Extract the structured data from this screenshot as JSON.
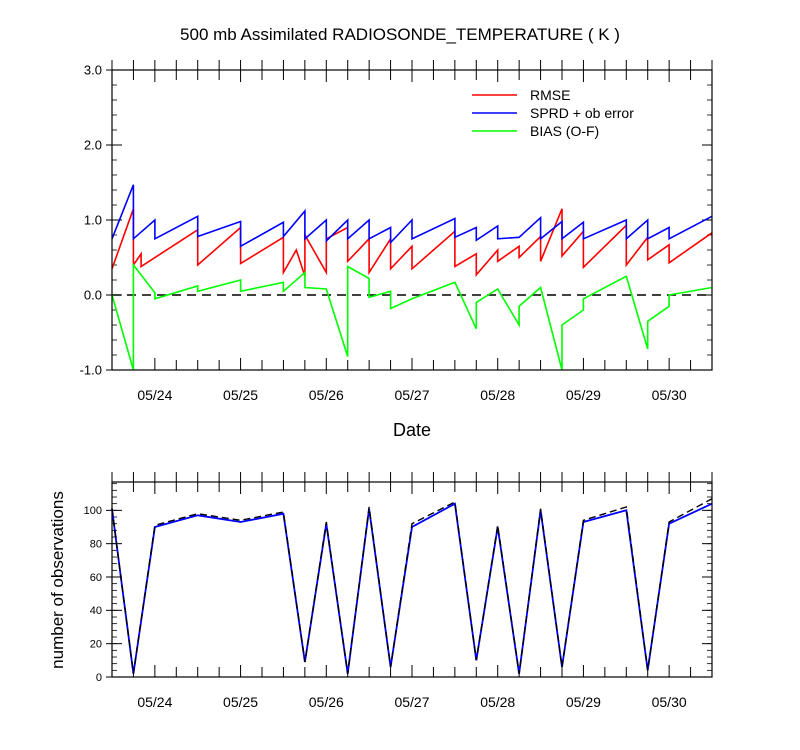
{
  "chart_data": [
    {
      "type": "line",
      "title": "500 mb Assimilated RADIOSONDE_TEMPERATURE ( K )",
      "xlabel": "Date",
      "ylabel": "",
      "xlim": [
        "05/23 12:00",
        "05/30 12:00"
      ],
      "ylim": [
        -1.0,
        3.0
      ],
      "yticks": [
        "3.0",
        "2.0",
        "1.0",
        "0.0",
        "-1.0"
      ],
      "ytick_values": [
        3,
        2,
        1,
        0,
        -1
      ],
      "xticks": [
        "05/24",
        "05/25",
        "05/26",
        "05/27",
        "05/28",
        "05/29",
        "05/30"
      ],
      "xtick_days": [
        24,
        25,
        26,
        27,
        28,
        29,
        30
      ],
      "legend_position": "top-right",
      "reference_line": {
        "y": 0,
        "style": "dashed",
        "color": "#000000"
      },
      "series": [
        {
          "name": "RMSE",
          "color": "#ff0000",
          "points": [
            [
              23.5,
              0.35
            ],
            [
              23.75,
              1.15
            ],
            [
              23.75,
              0.4
            ],
            [
              23.84,
              0.55
            ],
            [
              23.84,
              0.38
            ],
            [
              24.5,
              0.87
            ],
            [
              24.5,
              0.4
            ],
            [
              25.0,
              0.9
            ],
            [
              25.0,
              0.42
            ],
            [
              25.5,
              0.77
            ],
            [
              25.5,
              0.3
            ],
            [
              25.65,
              0.6
            ],
            [
              25.75,
              0.25
            ],
            [
              25.75,
              0.8
            ],
            [
              26.0,
              0.3
            ],
            [
              26.0,
              0.75
            ],
            [
              26.25,
              0.9
            ],
            [
              26.25,
              0.45
            ],
            [
              26.5,
              0.75
            ],
            [
              26.5,
              0.3
            ],
            [
              26.75,
              0.75
            ],
            [
              26.75,
              0.35
            ],
            [
              27.0,
              0.65
            ],
            [
              27.0,
              0.35
            ],
            [
              27.5,
              0.85
            ],
            [
              27.5,
              0.38
            ],
            [
              27.75,
              0.55
            ],
            [
              27.75,
              0.27
            ],
            [
              28.0,
              0.6
            ],
            [
              28.0,
              0.45
            ],
            [
              28.25,
              0.65
            ],
            [
              28.25,
              0.5
            ],
            [
              28.5,
              0.78
            ],
            [
              28.5,
              0.45
            ],
            [
              28.75,
              1.15
            ],
            [
              28.75,
              0.52
            ],
            [
              29.0,
              0.85
            ],
            [
              29.0,
              0.37
            ],
            [
              29.5,
              0.93
            ],
            [
              29.5,
              0.4
            ],
            [
              29.75,
              0.77
            ],
            [
              29.75,
              0.47
            ],
            [
              30.0,
              0.67
            ],
            [
              30.0,
              0.43
            ],
            [
              30.5,
              0.83
            ]
          ]
        },
        {
          "name": "SPRD + ob error",
          "color": "#0000ff",
          "points": [
            [
              23.5,
              0.75
            ],
            [
              23.75,
              1.47
            ],
            [
              23.75,
              0.75
            ],
            [
              24.0,
              1.0
            ],
            [
              24.0,
              0.75
            ],
            [
              24.5,
              1.05
            ],
            [
              24.5,
              0.78
            ],
            [
              25.0,
              0.98
            ],
            [
              25.0,
              0.65
            ],
            [
              25.5,
              0.97
            ],
            [
              25.5,
              0.78
            ],
            [
              25.75,
              1.12
            ],
            [
              25.75,
              0.75
            ],
            [
              26.0,
              1.0
            ],
            [
              26.0,
              0.72
            ],
            [
              26.25,
              1.0
            ],
            [
              26.25,
              0.75
            ],
            [
              26.5,
              1.0
            ],
            [
              26.5,
              0.75
            ],
            [
              26.75,
              0.9
            ],
            [
              26.75,
              0.7
            ],
            [
              27.0,
              1.0
            ],
            [
              27.0,
              0.75
            ],
            [
              27.5,
              1.02
            ],
            [
              27.5,
              0.77
            ],
            [
              27.75,
              0.9
            ],
            [
              27.75,
              0.73
            ],
            [
              28.0,
              0.92
            ],
            [
              28.0,
              0.75
            ],
            [
              28.25,
              0.77
            ],
            [
              28.5,
              1.03
            ],
            [
              28.5,
              0.75
            ],
            [
              28.75,
              0.98
            ],
            [
              28.75,
              0.75
            ],
            [
              29.0,
              0.97
            ],
            [
              29.0,
              0.75
            ],
            [
              29.5,
              1.0
            ],
            [
              29.5,
              0.75
            ],
            [
              29.75,
              1.0
            ],
            [
              29.75,
              0.75
            ],
            [
              30.0,
              0.9
            ],
            [
              30.0,
              0.75
            ],
            [
              30.5,
              1.05
            ]
          ]
        },
        {
          "name": "BIAS (O-F)",
          "color": "#00ff00",
          "points": [
            [
              23.5,
              0.0
            ],
            [
              23.75,
              -1.0
            ],
            [
              23.75,
              0.4
            ],
            [
              24.0,
              0.03
            ],
            [
              24.0,
              -0.05
            ],
            [
              24.5,
              0.12
            ],
            [
              24.5,
              0.05
            ],
            [
              25.0,
              0.2
            ],
            [
              25.0,
              0.05
            ],
            [
              25.5,
              0.17
            ],
            [
              25.5,
              0.05
            ],
            [
              25.75,
              0.3
            ],
            [
              25.75,
              0.1
            ],
            [
              26.0,
              0.08
            ],
            [
              26.25,
              -0.82
            ],
            [
              26.25,
              0.38
            ],
            [
              26.5,
              0.22
            ],
            [
              26.5,
              -0.03
            ],
            [
              26.75,
              0.05
            ],
            [
              26.75,
              -0.18
            ],
            [
              27.0,
              -0.05
            ],
            [
              27.5,
              0.17
            ],
            [
              27.75,
              -0.45
            ],
            [
              27.75,
              -0.1
            ],
            [
              28.0,
              0.08
            ],
            [
              28.25,
              -0.4
            ],
            [
              28.25,
              -0.15
            ],
            [
              28.5,
              0.1
            ],
            [
              28.75,
              -1.0
            ],
            [
              28.75,
              -0.4
            ],
            [
              29.0,
              -0.2
            ],
            [
              29.0,
              -0.05
            ],
            [
              29.5,
              0.25
            ],
            [
              29.75,
              -0.72
            ],
            [
              29.75,
              -0.35
            ],
            [
              30.0,
              -0.15
            ],
            [
              30.0,
              0.0
            ],
            [
              30.5,
              0.1
            ]
          ]
        }
      ]
    },
    {
      "type": "line",
      "title": "",
      "xlabel": "",
      "ylabel": "number of observations",
      "xlim": [
        "05/23 12:00",
        "05/30 12:00"
      ],
      "ylim": [
        0,
        117
      ],
      "yticks": [
        "100",
        "80",
        "60",
        "40",
        "20",
        "0"
      ],
      "ytick_values": [
        100,
        80,
        60,
        40,
        20,
        0
      ],
      "xticks": [
        "05/24",
        "05/25",
        "05/26",
        "05/27",
        "05/28",
        "05/29",
        "05/30"
      ],
      "xtick_days": [
        24,
        25,
        26,
        27,
        28,
        29,
        30
      ],
      "series": [
        {
          "color": "#0000ff",
          "style": "solid",
          "points": [
            [
              23.5,
              101
            ],
            [
              23.75,
              2
            ],
            [
              24.0,
              90
            ],
            [
              24.5,
              97
            ],
            [
              25.0,
              93
            ],
            [
              25.5,
              98
            ],
            [
              25.75,
              9
            ],
            [
              26.0,
              92
            ],
            [
              26.25,
              2
            ],
            [
              26.5,
              101
            ],
            [
              26.75,
              6
            ],
            [
              27.0,
              90
            ],
            [
              27.5,
              104
            ],
            [
              27.75,
              10
            ],
            [
              28.0,
              90
            ],
            [
              28.25,
              2
            ],
            [
              28.5,
              100
            ],
            [
              28.75,
              6
            ],
            [
              29.0,
              93
            ],
            [
              29.5,
              100
            ],
            [
              29.75,
              4
            ],
            [
              30.0,
              92
            ],
            [
              30.5,
              104
            ]
          ]
        },
        {
          "color": "#000000",
          "style": "dashed",
          "points": [
            [
              23.5,
              101
            ],
            [
              23.75,
              2
            ],
            [
              24.0,
              91
            ],
            [
              24.5,
              98
            ],
            [
              25.0,
              94
            ],
            [
              25.5,
              99
            ],
            [
              25.75,
              9
            ],
            [
              26.0,
              93
            ],
            [
              26.25,
              2
            ],
            [
              26.5,
              102
            ],
            [
              26.75,
              6
            ],
            [
              27.0,
              92
            ],
            [
              27.5,
              105
            ],
            [
              27.75,
              10
            ],
            [
              28.0,
              91
            ],
            [
              28.25,
              2
            ],
            [
              28.5,
              101
            ],
            [
              28.75,
              6
            ],
            [
              29.0,
              94
            ],
            [
              29.5,
              102
            ],
            [
              29.75,
              4
            ],
            [
              30.0,
              93
            ],
            [
              30.5,
              107
            ]
          ]
        }
      ]
    }
  ]
}
